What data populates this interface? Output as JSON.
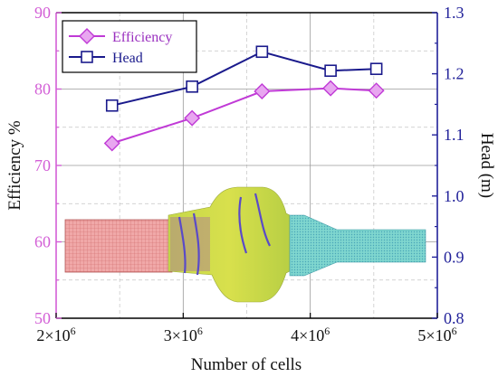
{
  "chart_data": {
    "type": "line",
    "xlabel": "Number of cells",
    "ylabel_left": "Efficiency %",
    "ylabel_right": "Head (m)",
    "xlim": [
      2000000,
      5000000
    ],
    "ylim_left": [
      50,
      90
    ],
    "ylim_right": [
      0.8,
      1.3
    ],
    "grid": true,
    "legend_position": "top-left",
    "x_ticks": [
      {
        "value": 2000000,
        "label": "2×10^6"
      },
      {
        "value": 3000000,
        "label": "3×10^6"
      },
      {
        "value": 4000000,
        "label": "4×10^6"
      },
      {
        "value": 5000000,
        "label": "5×10^6"
      }
    ],
    "y_ticks_left": [
      50,
      60,
      70,
      80,
      90
    ],
    "y_ticks_right": [
      "0.8",
      "0.9",
      "1.0",
      "1.1",
      "1.2",
      "1.3"
    ],
    "series": [
      {
        "name": "Efficiency",
        "axis": "left",
        "color": "#c03ad6",
        "marker": "diamond",
        "x": [
          2440000,
          3070000,
          3620000,
          4160000,
          4520000
        ],
        "y": [
          72.9,
          76.2,
          79.7,
          80.1,
          79.8
        ]
      },
      {
        "name": "Head",
        "axis": "right",
        "color": "#1a1a8c",
        "marker": "square",
        "x": [
          2440000,
          3070000,
          3620000,
          4160000,
          4520000
        ],
        "y": [
          1.148,
          1.179,
          1.236,
          1.205,
          1.208
        ]
      }
    ],
    "colors": {
      "left_axis": "#d35fd6",
      "right_axis": "#22229a",
      "grid": "#9a9a9a"
    }
  }
}
